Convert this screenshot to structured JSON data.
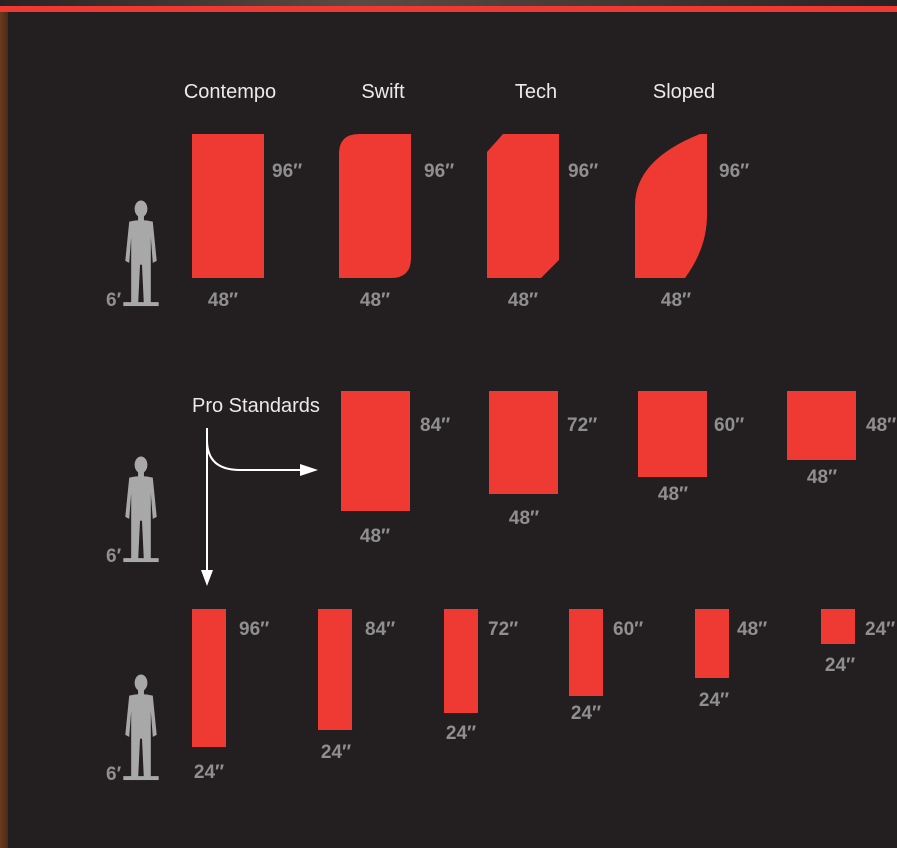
{
  "top_row": {
    "styles": [
      {
        "name": "Contempo",
        "height": "96″",
        "width": "48″"
      },
      {
        "name": "Swift",
        "height": "96″",
        "width": "48″"
      },
      {
        "name": "Tech",
        "height": "96″",
        "width": "48″"
      },
      {
        "name": "Sloped",
        "height": "96″",
        "width": "48″"
      }
    ],
    "person_label": "6′"
  },
  "pro_standards": {
    "label": "Pro Standards",
    "person_label": "6′",
    "banners_48": [
      {
        "height": "84″",
        "width": "48″"
      },
      {
        "height": "72″",
        "width": "48″"
      },
      {
        "height": "60″",
        "width": "48″"
      },
      {
        "height": "48″",
        "width": "48″"
      }
    ],
    "banners_24": [
      {
        "height": "96″",
        "width": "24″"
      },
      {
        "height": "84″",
        "width": "24″"
      },
      {
        "height": "72″",
        "width": "24″"
      },
      {
        "height": "60″",
        "width": "24″"
      },
      {
        "height": "48″",
        "width": "24″"
      },
      {
        "height": "24″",
        "width": "24″"
      }
    ],
    "person_label_bottom": "6′"
  },
  "colors": {
    "banner": "#ee3a33",
    "background": "#231f20",
    "silhouette": "#a8a8a8",
    "dimension_text": "#8f8f8f"
  }
}
